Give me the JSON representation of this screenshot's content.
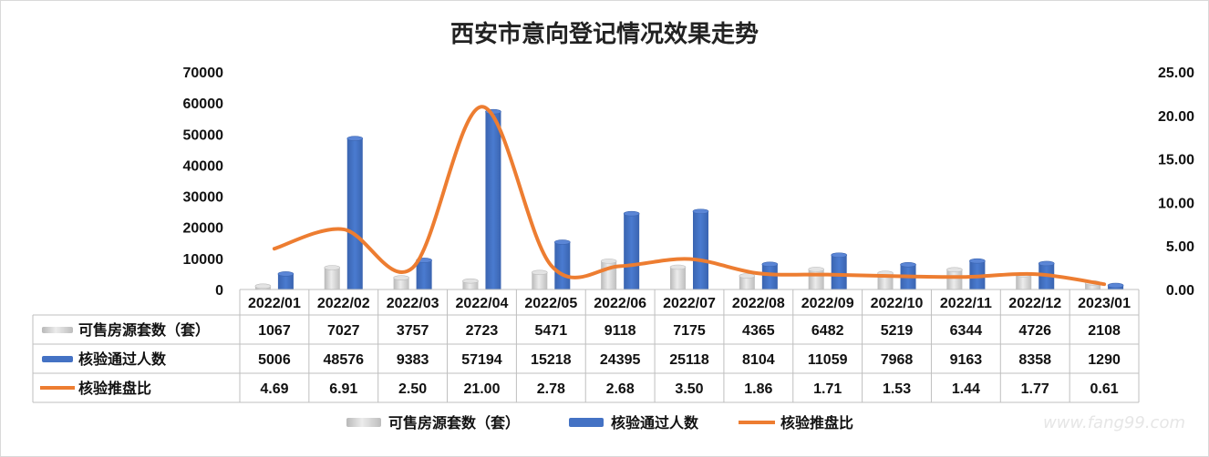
{
  "chart_data": {
    "type": "bar",
    "title": "西安市意向登记情况效果走势",
    "categories": [
      "2022/01",
      "2022/02",
      "2022/03",
      "2022/04",
      "2022/05",
      "2022/06",
      "2022/07",
      "2022/08",
      "2022/09",
      "2022/10",
      "2022/11",
      "2022/12",
      "2023/01"
    ],
    "y_left": {
      "ylim": [
        0,
        70000
      ],
      "ticks": [
        "70000",
        "60000",
        "50000",
        "40000",
        "30000",
        "20000",
        "10000",
        "0"
      ]
    },
    "y_right": {
      "ylim": [
        0,
        25
      ],
      "ticks": [
        "25.00",
        "20.00",
        "15.00",
        "10.00",
        "5.00",
        "0.00"
      ]
    },
    "series": [
      {
        "name": "可售房源套数（套）",
        "type": "bar",
        "axis": "left",
        "color": "#c9c9c9",
        "values": [
          1067,
          7027,
          3757,
          2723,
          5471,
          9118,
          7175,
          4365,
          6482,
          5219,
          6344,
          4726,
          2108
        ]
      },
      {
        "name": "核验通过人数",
        "type": "bar",
        "axis": "left",
        "color": "#4472c4",
        "values": [
          5006,
          48576,
          9383,
          57194,
          15218,
          24395,
          25118,
          8104,
          11059,
          7968,
          9163,
          8358,
          1290
        ]
      },
      {
        "name": "核验推盘比",
        "type": "line",
        "axis": "right",
        "color": "#ed7d31",
        "values": [
          "4.69",
          "6.91",
          "2.50",
          "21.00",
          "2.78",
          "2.68",
          "3.50",
          "1.86",
          "1.71",
          "1.53",
          "1.44",
          "1.77",
          "0.61"
        ]
      }
    ],
    "grid": false,
    "legend_position": "bottom",
    "data_table": true
  },
  "watermark": "www.fang99.com"
}
